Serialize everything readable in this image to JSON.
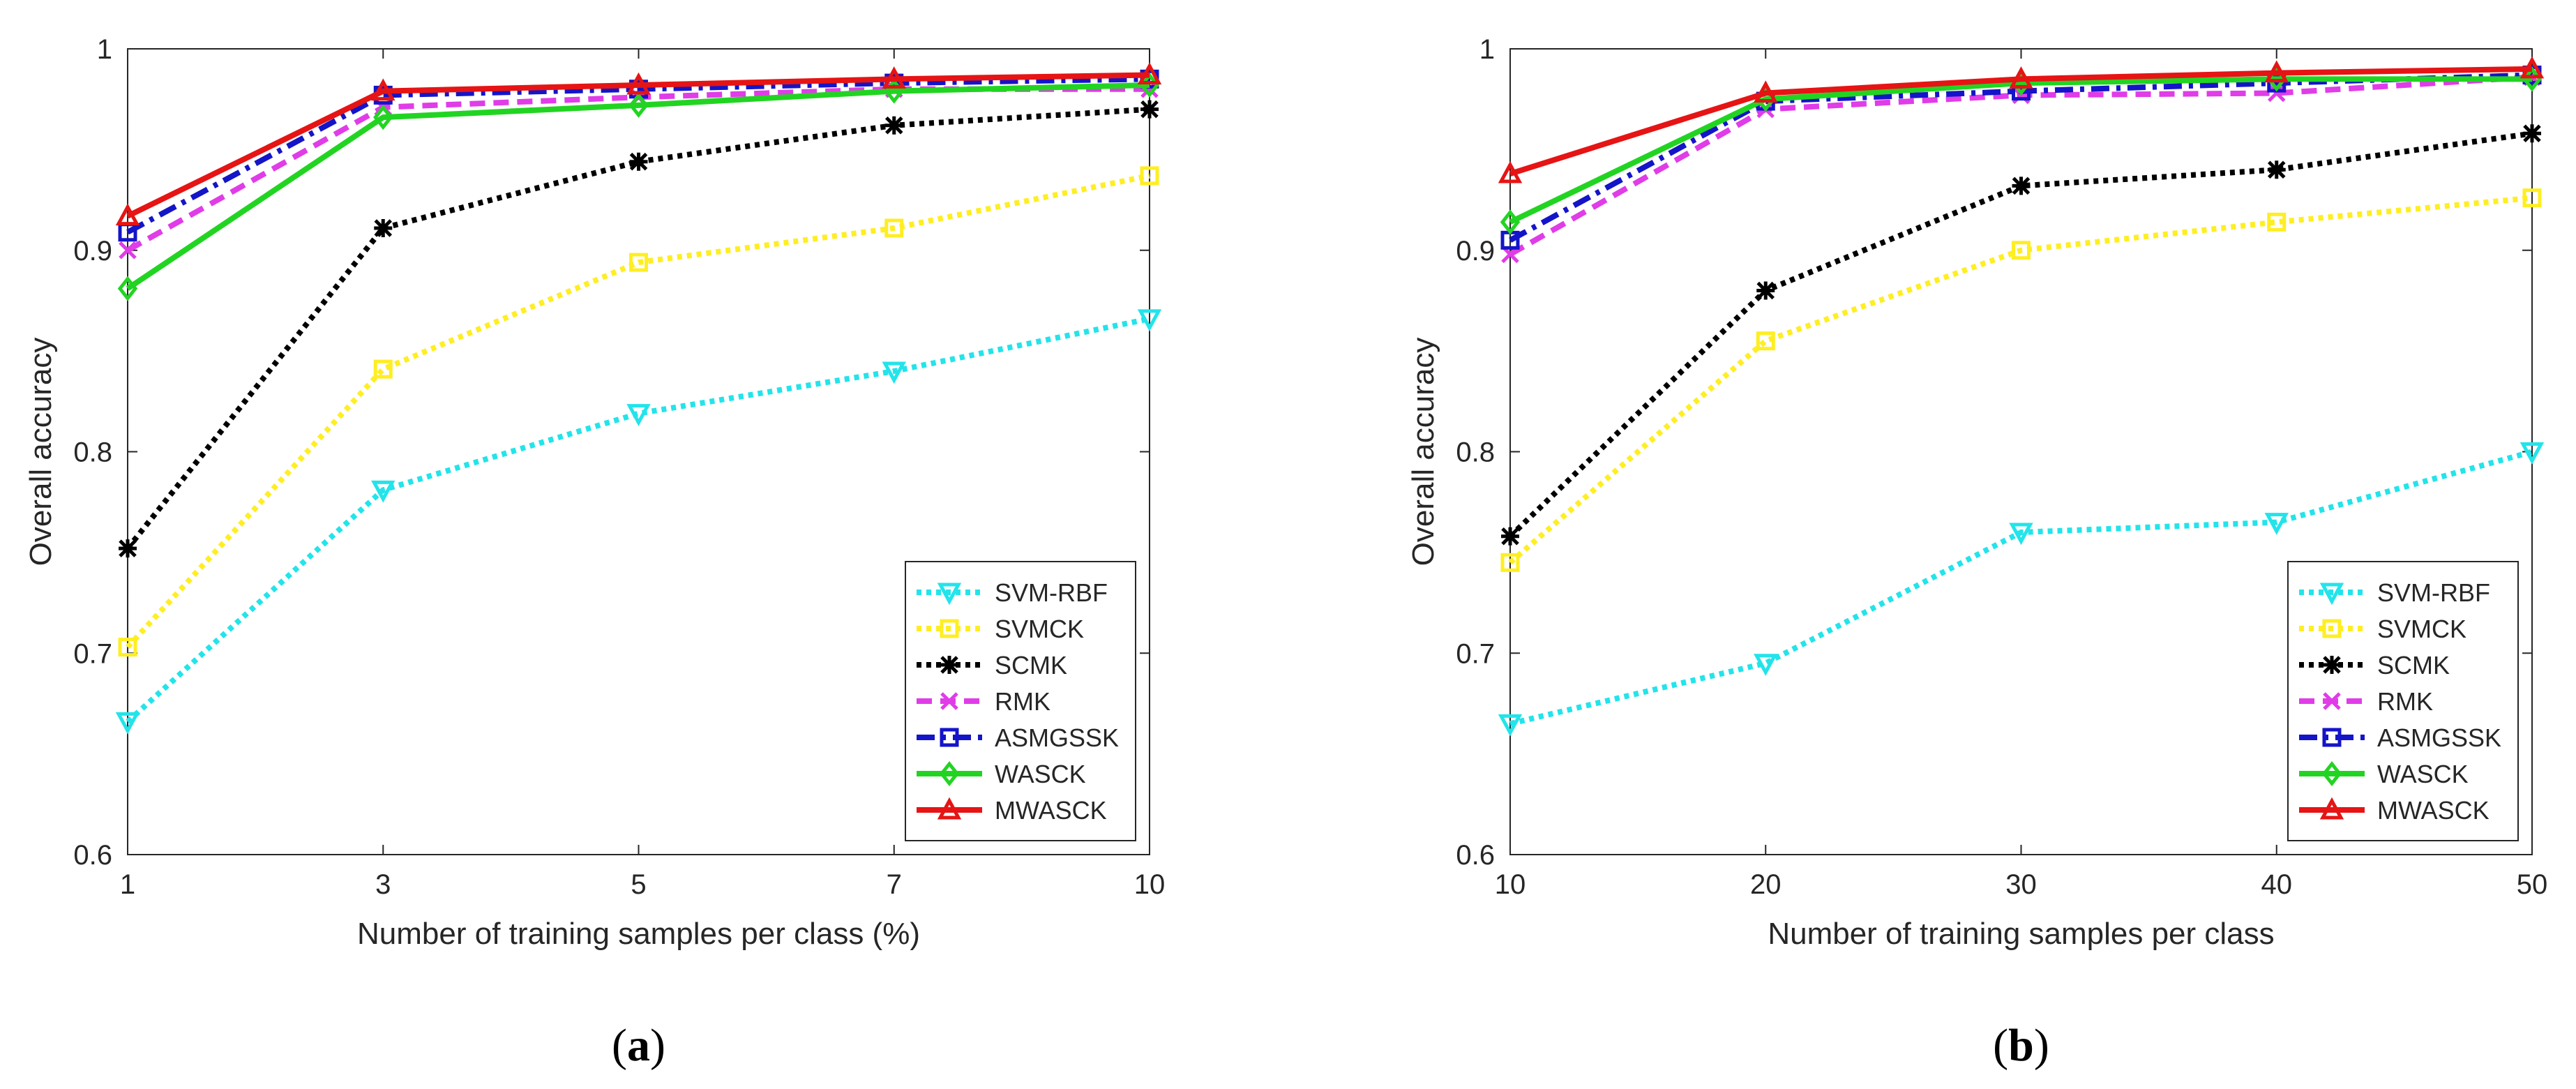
{
  "colors": {
    "SVM-RBF": "#22e4ea",
    "SVMCK": "#ffee22",
    "SCMK": "#000000",
    "RMK": "#e03ce8",
    "ASMGSSK": "#1414c8",
    "WASCK": "#22d422",
    "MWASCK": "#e61414"
  },
  "chart_data": [
    {
      "type": "line",
      "panel_label": "a",
      "xlabel": "Number of training samples per class (%)",
      "ylabel": "Overall accuracy",
      "categories": [
        "1",
        "3",
        "5",
        "7",
        "10"
      ],
      "ylim": [
        0.6,
        1.0
      ],
      "yticks": [
        "0.6",
        "0.7",
        "0.8",
        "0.9",
        "1"
      ],
      "legend_position": "bottom-right",
      "series": [
        {
          "name": "SVM-RBF",
          "marker": "triangle-down",
          "dash": "dotted",
          "values": [
            0.666,
            0.781,
            0.819,
            0.84,
            0.866
          ]
        },
        {
          "name": "SVMCK",
          "marker": "square",
          "dash": "dotted",
          "values": [
            0.703,
            0.841,
            0.894,
            0.911,
            0.937
          ]
        },
        {
          "name": "SCMK",
          "marker": "asterisk",
          "dash": "dotted",
          "values": [
            0.752,
            0.911,
            0.944,
            0.962,
            0.97
          ]
        },
        {
          "name": "RMK",
          "marker": "x",
          "dash": "dashed",
          "values": [
            0.9,
            0.971,
            0.976,
            0.98,
            0.98
          ]
        },
        {
          "name": "ASMGSSK",
          "marker": "square",
          "dash": "dashdot",
          "values": [
            0.909,
            0.977,
            0.98,
            0.983,
            0.985
          ]
        },
        {
          "name": "WASCK",
          "marker": "diamond",
          "dash": "solid",
          "values": [
            0.881,
            0.966,
            0.972,
            0.979,
            0.982
          ]
        },
        {
          "name": "MWASCK",
          "marker": "triangle-up",
          "dash": "solid",
          "values": [
            0.917,
            0.979,
            0.982,
            0.985,
            0.987
          ]
        }
      ]
    },
    {
      "type": "line",
      "panel_label": "b",
      "xlabel": "Number of training samples per class",
      "ylabel": "Overall accuracy",
      "categories": [
        "10",
        "20",
        "30",
        "40",
        "50"
      ],
      "ylim": [
        0.6,
        1.0
      ],
      "yticks": [
        "0.6",
        "0.7",
        "0.8",
        "0.9",
        "1"
      ],
      "legend_position": "bottom-right",
      "series": [
        {
          "name": "SVM-RBF",
          "marker": "triangle-down",
          "dash": "dotted",
          "values": [
            0.665,
            0.695,
            0.76,
            0.765,
            0.8
          ]
        },
        {
          "name": "SVMCK",
          "marker": "square",
          "dash": "dotted",
          "values": [
            0.745,
            0.855,
            0.9,
            0.914,
            0.926
          ]
        },
        {
          "name": "SCMK",
          "marker": "asterisk",
          "dash": "dotted",
          "values": [
            0.758,
            0.88,
            0.932,
            0.94,
            0.958
          ]
        },
        {
          "name": "RMK",
          "marker": "x",
          "dash": "dashed",
          "values": [
            0.898,
            0.97,
            0.977,
            0.978,
            0.986
          ]
        },
        {
          "name": "ASMGSSK",
          "marker": "square",
          "dash": "dashdot",
          "values": [
            0.905,
            0.974,
            0.979,
            0.983,
            0.987
          ]
        },
        {
          "name": "WASCK",
          "marker": "diamond",
          "dash": "solid",
          "values": [
            0.914,
            0.975,
            0.983,
            0.985,
            0.985
          ]
        },
        {
          "name": "MWASCK",
          "marker": "triangle-up",
          "dash": "solid",
          "values": [
            0.938,
            0.978,
            0.985,
            0.988,
            0.99
          ]
        }
      ]
    }
  ]
}
